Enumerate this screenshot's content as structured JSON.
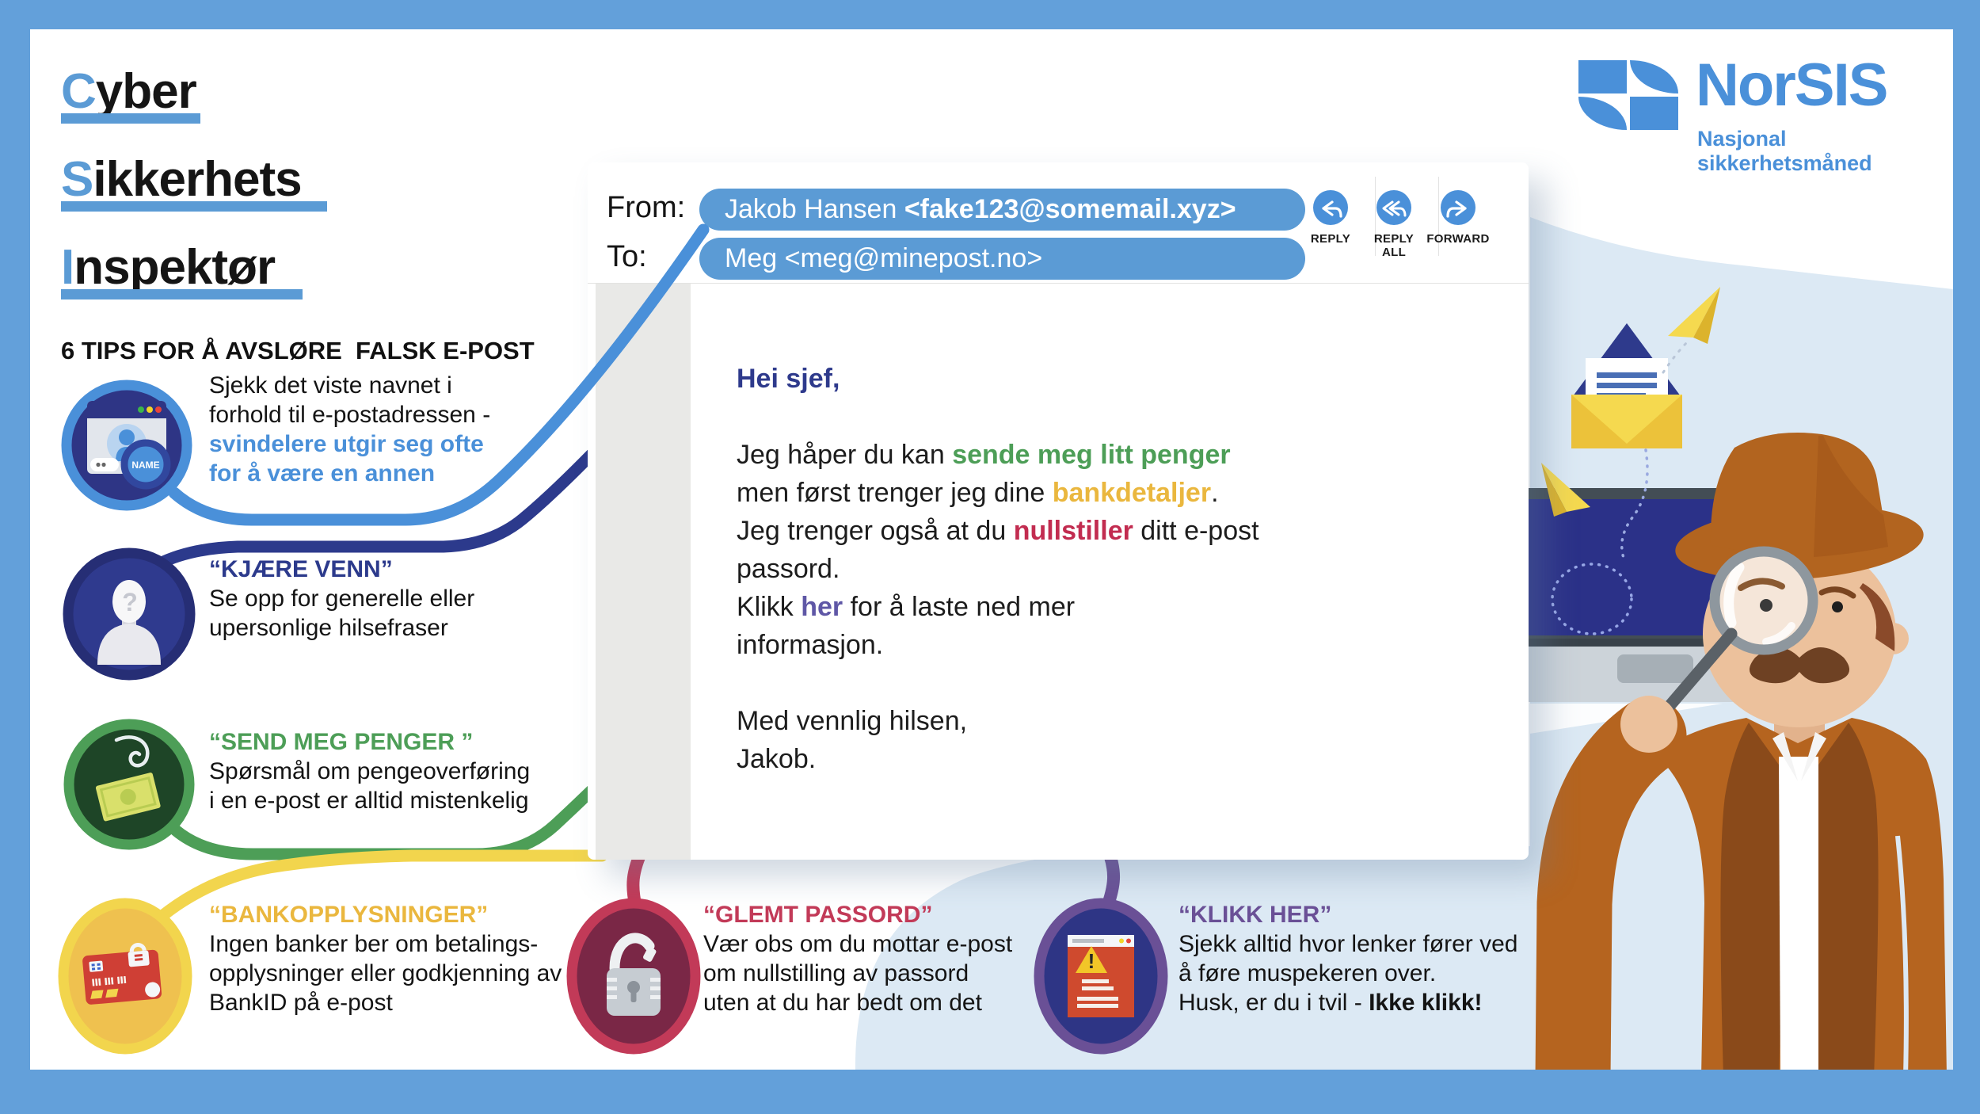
{
  "header": {
    "title_lines": [
      {
        "first": "C",
        "rest": "yber"
      },
      {
        "first": "S",
        "rest": "ikkerhets"
      },
      {
        "first": "I",
        "rest": "nspektør"
      }
    ],
    "subtitle": "6 TIPS FOR Å AVSLØRE  FALSK E-POST"
  },
  "logo": {
    "name": "NorSIS",
    "tagline": "Nasjonal sikkerhetsmåned",
    "color": "#4a90d9"
  },
  "email": {
    "from_label": "From:",
    "to_label": "To:",
    "from_name": "Jakob Hansen ",
    "from_address": "<fake123@somemail.xyz>",
    "to_value": "Meg <meg@minepost.no>",
    "buttons": [
      {
        "label": "REPLY"
      },
      {
        "label": "REPLY ALL"
      },
      {
        "label": "FORWARD"
      }
    ],
    "body": [
      [
        {
          "t": "Hei sjef,",
          "s": "greeting"
        }
      ],
      [],
      [
        {
          "t": "Jeg håper du kan ",
          "s": "n"
        },
        {
          "t": "sende meg litt penger",
          "s": "green"
        }
      ],
      [
        {
          "t": "men først trenger jeg dine ",
          "s": "n"
        },
        {
          "t": "bankdetaljer",
          "s": "yellow"
        },
        {
          "t": ".",
          "s": "n"
        }
      ],
      [
        {
          "t": "Jeg trenger også at du ",
          "s": "n"
        },
        {
          "t": "nullstiller",
          "s": "red"
        },
        {
          "t": " ditt e-post",
          "s": "n"
        }
      ],
      [
        {
          "t": "passord.",
          "s": "n"
        }
      ],
      [
        {
          "t": "Klikk ",
          "s": "n"
        },
        {
          "t": "her",
          "s": "link"
        },
        {
          "t": " for å laste ned mer",
          "s": "n"
        }
      ],
      [
        {
          "t": "informasjon.",
          "s": "n"
        }
      ],
      [],
      [
        {
          "t": "Med vennlig hilsen,",
          "s": "n"
        }
      ],
      [
        {
          "t": "Jakob.",
          "s": "n"
        }
      ]
    ]
  },
  "tips": [
    {
      "title": "",
      "title_color": "",
      "lines": [
        [
          {
            "t": "Sjekk det viste navnet i",
            "s": "n"
          }
        ],
        [
          {
            "t": "forhold til e-postadressen -",
            "s": "n"
          }
        ],
        [
          {
            "t": "svindelere utgir seg ofte",
            "s": "accent"
          }
        ],
        [
          {
            "t": "for å være en annen",
            "s": "accent"
          }
        ]
      ]
    },
    {
      "title": "“KJÆRE VENN”",
      "title_color": "#2c3a8c",
      "lines": [
        [
          {
            "t": "Se opp for generelle eller",
            "s": "n"
          }
        ],
        [
          {
            "t": "upersonlige hilsefraser",
            "s": "n"
          }
        ]
      ]
    },
    {
      "title": "“SEND MEG PENGER ”",
      "title_color": "#4d9e57",
      "lines": [
        [
          {
            "t": "Spørsmål om pengeoverføring",
            "s": "n"
          }
        ],
        [
          {
            "t": "i en e-post er alltid mistenkelig",
            "s": "n"
          }
        ]
      ]
    },
    {
      "title": "“BANKOPPLYSNINGER”",
      "title_color": "#eab73e",
      "lines": [
        [
          {
            "t": "Ingen banker ber om betalings-",
            "s": "n"
          }
        ],
        [
          {
            "t": "opplysninger eller godkjenning av",
            "s": "n"
          }
        ],
        [
          {
            "t": "BankID på e-post",
            "s": "n"
          }
        ]
      ]
    },
    {
      "title": "“GLEMT PASSORD”",
      "title_color": "#c23a58",
      "lines": [
        [
          {
            "t": "Vær obs om du mottar e-post",
            "s": "n"
          }
        ],
        [
          {
            "t": "om nullstilling av passord",
            "s": "n"
          }
        ],
        [
          {
            "t": "uten at du har bedt om det",
            "s": "n"
          }
        ]
      ]
    },
    {
      "title": "“KLIKK HER”",
      "title_color": "#6a5096",
      "lines": [
        [
          {
            "t": "Sjekk alltid hvor lenker fører ved",
            "s": "n"
          }
        ],
        [
          {
            "t": "å føre muspekeren over.",
            "s": "n"
          }
        ],
        [
          {
            "t": "Husk, er du i tvil - ",
            "s": "n"
          },
          {
            "t": "Ikke klikk!",
            "s": "b"
          }
        ]
      ]
    }
  ],
  "icons": {
    "name_badge_label": "NAME",
    "unknown_person_glyph": "?",
    "warning_glyph": "!"
  },
  "colors": {
    "frame_blue": "#63a0da",
    "accent_blue": "#5b9bd5",
    "line_blue": "#4a90d9",
    "navy": "#2c3a8c",
    "green": "#4d9e57",
    "yellow": "#f2d54d",
    "yellow_text": "#eab73e",
    "red": "#c23a58",
    "purple": "#6a5096",
    "blob_light_blue": "#dce9f4"
  }
}
